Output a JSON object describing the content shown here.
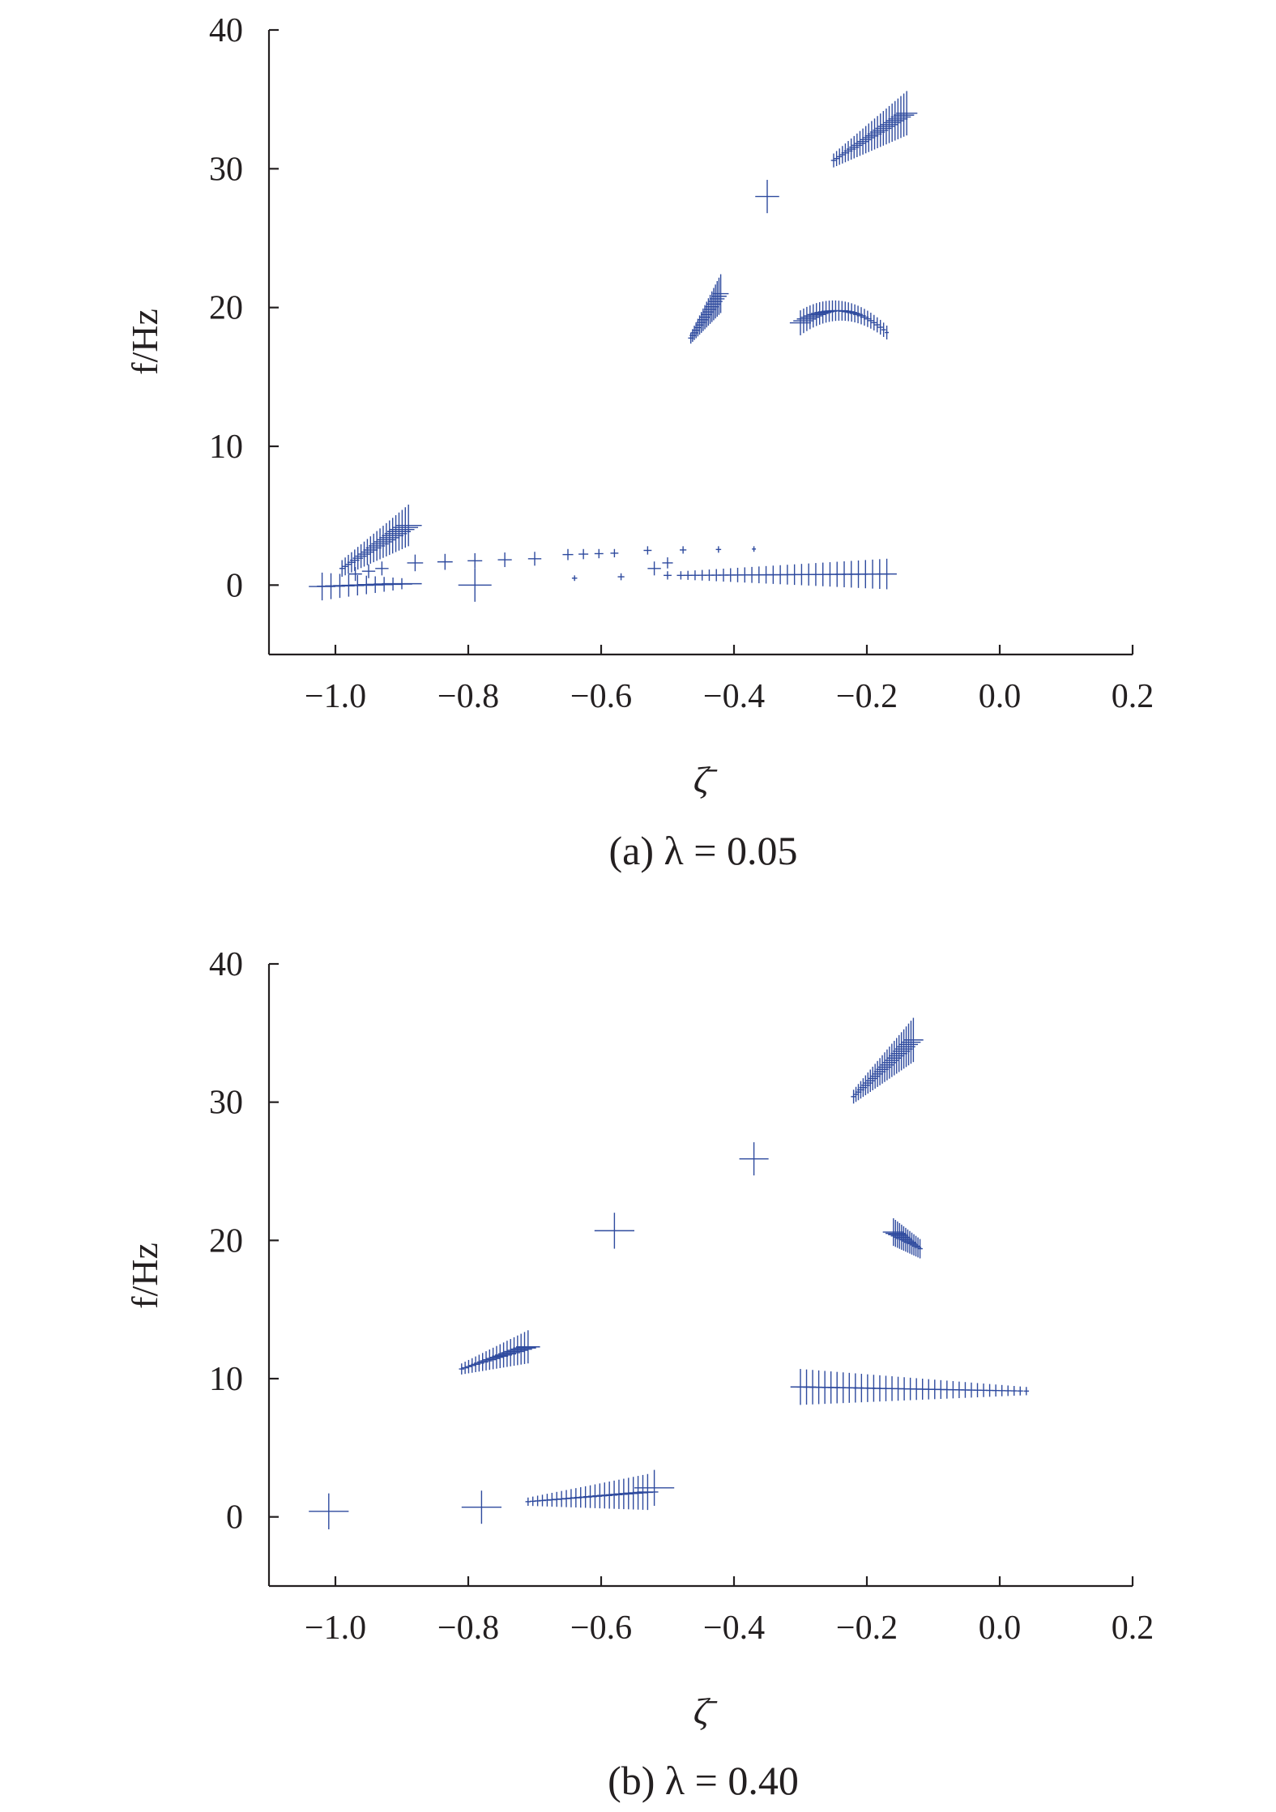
{
  "chart_data": [
    {
      "type": "scatter",
      "caption": "(a) λ = 0.05",
      "xlabel": "ζ̄",
      "ylabel": "f/Hz",
      "xlim": [
        -1.1,
        0.2
      ],
      "ylim": [
        -5,
        40
      ],
      "xticks": [
        -1.0,
        -0.8,
        -0.6,
        -0.4,
        -0.2,
        0.0,
        0.2
      ],
      "xtick_labels": [
        "−1.0",
        "−0.8",
        "−0.6",
        "−0.4",
        "−0.2",
        "0.0",
        "0.2"
      ],
      "yticks": [
        0,
        10,
        20,
        30,
        40
      ],
      "ytick_labels": [
        "0",
        "10",
        "20",
        "30",
        "40"
      ],
      "color": "#2e4a9e",
      "marker": "cross",
      "clusters": [
        {
          "x": [
            -0.25,
            -0.14
          ],
          "y": [
            30.6,
            34.0
          ],
          "curve": 0.0,
          "n": 26,
          "dx": [
            0.004,
            0.016
          ],
          "dy": [
            0.5,
            1.6
          ]
        },
        {
          "x": [
            -0.35,
            -0.35
          ],
          "y": [
            28.0,
            28.0
          ],
          "curve": 0.0,
          "n": 1,
          "dx": [
            0.018,
            0.018
          ],
          "dy": [
            1.2,
            1.2
          ]
        },
        {
          "x": [
            -0.465,
            -0.42
          ],
          "y": [
            17.8,
            21.0
          ],
          "curve": 0.0,
          "n": 18,
          "dx": [
            0.004,
            0.012
          ],
          "dy": [
            0.4,
            1.4
          ]
        },
        {
          "x": [
            -0.3,
            -0.17
          ],
          "y": [
            18.9,
            18.2
          ],
          "curve": 1.2,
          "n": 28,
          "dx": [
            0.016,
            0.003
          ],
          "dy": [
            0.9,
            0.5
          ]
        },
        {
          "x": [
            -0.99,
            -0.89
          ],
          "y": [
            1.2,
            4.3
          ],
          "curve": 0.0,
          "n": 22,
          "dx": [
            0.004,
            0.02
          ],
          "dy": [
            0.6,
            1.5
          ]
        },
        {
          "x": [
            -1.02,
            -0.9
          ],
          "y": [
            -0.1,
            0.1
          ],
          "curve": 0.0,
          "n": 10,
          "dx": [
            0.02,
            0.03
          ],
          "dy": [
            1.0,
            0.4
          ]
        },
        {
          "x": [
            -0.97,
            -0.93
          ],
          "y": [
            0.8,
            1.2
          ],
          "curve": 0.0,
          "n": 3,
          "dx": [
            0.01,
            0.01
          ],
          "dy": [
            0.5,
            0.5
          ]
        },
        {
          "x": [
            -0.88,
            -0.7
          ],
          "y": [
            1.6,
            1.9
          ],
          "curve": 0.0,
          "n": 5,
          "dx": [
            0.012,
            0.01
          ],
          "dy": [
            0.6,
            0.5
          ]
        },
        {
          "x": [
            -0.79,
            -0.79
          ],
          "y": [
            0.0,
            0.0
          ],
          "curve": 0.0,
          "n": 1,
          "dx": [
            0.025,
            0.025
          ],
          "dy": [
            1.2,
            1.2
          ]
        },
        {
          "x": [
            -0.65,
            -0.58
          ],
          "y": [
            2.2,
            2.3
          ],
          "curve": 0.0,
          "n": 4,
          "dx": [
            0.008,
            0.006
          ],
          "dy": [
            0.4,
            0.3
          ]
        },
        {
          "x": [
            -0.53,
            -0.37
          ],
          "y": [
            2.5,
            2.6
          ],
          "curve": 0.0,
          "n": 4,
          "dx": [
            0.006,
            0.003
          ],
          "dy": [
            0.3,
            0.2
          ]
        },
        {
          "x": [
            -0.52,
            -0.5
          ],
          "y": [
            1.2,
            1.6
          ],
          "curve": 0.0,
          "n": 2,
          "dx": [
            0.01,
            0.008
          ],
          "dy": [
            0.5,
            0.4
          ]
        },
        {
          "x": [
            -0.64,
            -0.5
          ],
          "y": [
            0.5,
            0.7
          ],
          "curve": 0.0,
          "n": 3,
          "dx": [
            0.004,
            0.006
          ],
          "dy": [
            0.2,
            0.3
          ]
        },
        {
          "x": [
            -0.48,
            -0.17
          ],
          "y": [
            0.7,
            0.8
          ],
          "curve": 0.0,
          "n": 30,
          "dx": [
            0.006,
            0.015
          ],
          "dy": [
            0.3,
            1.1
          ]
        }
      ]
    },
    {
      "type": "scatter",
      "caption": "(b) λ = 0.40",
      "xlabel": "ζ̄",
      "ylabel": "f/Hz",
      "xlim": [
        -1.1,
        0.2
      ],
      "ylim": [
        -5,
        40
      ],
      "xticks": [
        -1.0,
        -0.8,
        -0.6,
        -0.4,
        -0.2,
        0.0,
        0.2
      ],
      "xtick_labels": [
        "−1.0",
        "−0.8",
        "−0.6",
        "−0.4",
        "−0.2",
        "0.0",
        "0.2"
      ],
      "yticks": [
        0,
        10,
        20,
        30,
        40
      ],
      "ytick_labels": [
        "0",
        "10",
        "20",
        "30",
        "40"
      ],
      "color": "#2e4a9e",
      "marker": "cross",
      "clusters": [
        {
          "x": [
            -0.22,
            -0.13
          ],
          "y": [
            30.4,
            34.5
          ],
          "curve": 0.0,
          "n": 26,
          "dx": [
            0.004,
            0.015
          ],
          "dy": [
            0.5,
            1.6
          ]
        },
        {
          "x": [
            -0.37,
            -0.37
          ],
          "y": [
            25.9,
            25.9
          ],
          "curve": 0.0,
          "n": 1,
          "dx": [
            0.022,
            0.022
          ],
          "dy": [
            1.2,
            1.2
          ]
        },
        {
          "x": [
            -0.58,
            -0.58
          ],
          "y": [
            20.7,
            20.7
          ],
          "curve": 0.0,
          "n": 1,
          "dx": [
            0.03,
            0.03
          ],
          "dy": [
            1.3,
            1.3
          ]
        },
        {
          "x": [
            -0.16,
            -0.12
          ],
          "y": [
            20.6,
            19.4
          ],
          "curve": 0.0,
          "n": 14,
          "dx": [
            0.016,
            0.004
          ],
          "dy": [
            1.0,
            0.7
          ]
        },
        {
          "x": [
            -0.81,
            -0.71
          ],
          "y": [
            10.7,
            12.3
          ],
          "curve": 0.0,
          "n": 20,
          "dx": [
            0.004,
            0.018
          ],
          "dy": [
            0.4,
            1.2
          ]
        },
        {
          "x": [
            -0.3,
            0.04
          ],
          "y": [
            9.4,
            9.1
          ],
          "curve": 0.0,
          "n": 38,
          "dx": [
            0.015,
            0.004
          ],
          "dy": [
            1.3,
            0.3
          ]
        },
        {
          "x": [
            -1.01,
            -1.01
          ],
          "y": [
            0.4,
            0.4
          ],
          "curve": 0.0,
          "n": 1,
          "dx": [
            0.03,
            0.03
          ],
          "dy": [
            1.3,
            1.3
          ]
        },
        {
          "x": [
            -0.78,
            -0.78
          ],
          "y": [
            0.7,
            0.7
          ],
          "curve": 0.0,
          "n": 1,
          "dx": [
            0.03,
            0.03
          ],
          "dy": [
            1.2,
            1.2
          ]
        },
        {
          "x": [
            -0.71,
            -0.53
          ],
          "y": [
            1.1,
            1.8
          ],
          "curve": 0.0,
          "n": 26,
          "dx": [
            0.004,
            0.016
          ],
          "dy": [
            0.3,
            1.3
          ]
        },
        {
          "x": [
            -0.52,
            -0.52
          ],
          "y": [
            2.1,
            2.1
          ],
          "curve": 0.0,
          "n": 1,
          "dx": [
            0.03,
            0.03
          ],
          "dy": [
            1.3,
            1.3
          ]
        }
      ]
    }
  ]
}
